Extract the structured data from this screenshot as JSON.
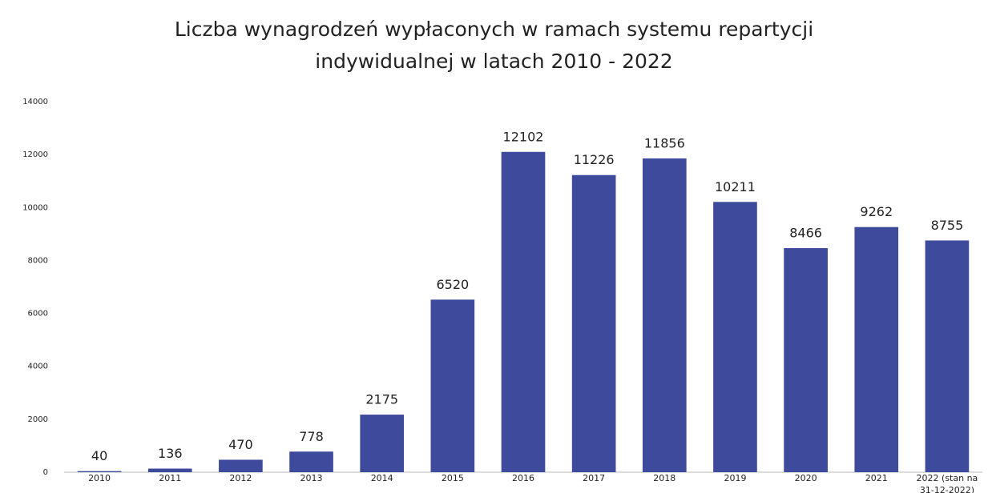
{
  "chart_data": {
    "type": "bar",
    "title": [
      "Liczba wynagrodzeń wypłaconych w ramach systemu repartycji",
      "indywidualnej  w latach 2010 - 2022"
    ],
    "categories": [
      "2010",
      "2011",
      "2012",
      "2013",
      "2014",
      "2015",
      "2016",
      "2017",
      "2018",
      "2019",
      "2020",
      "2021",
      "2022 (stan na 31-12-2022)"
    ],
    "values": [
      40,
      136,
      470,
      778,
      2175,
      6520,
      12102,
      11226,
      11856,
      10211,
      8466,
      9262,
      8755
    ],
    "color": "#3e4a9b",
    "ylim": [
      0,
      14000
    ],
    "yticks": [
      0,
      2000,
      4000,
      6000,
      8000,
      10000,
      12000,
      14000
    ],
    "grid": false
  }
}
